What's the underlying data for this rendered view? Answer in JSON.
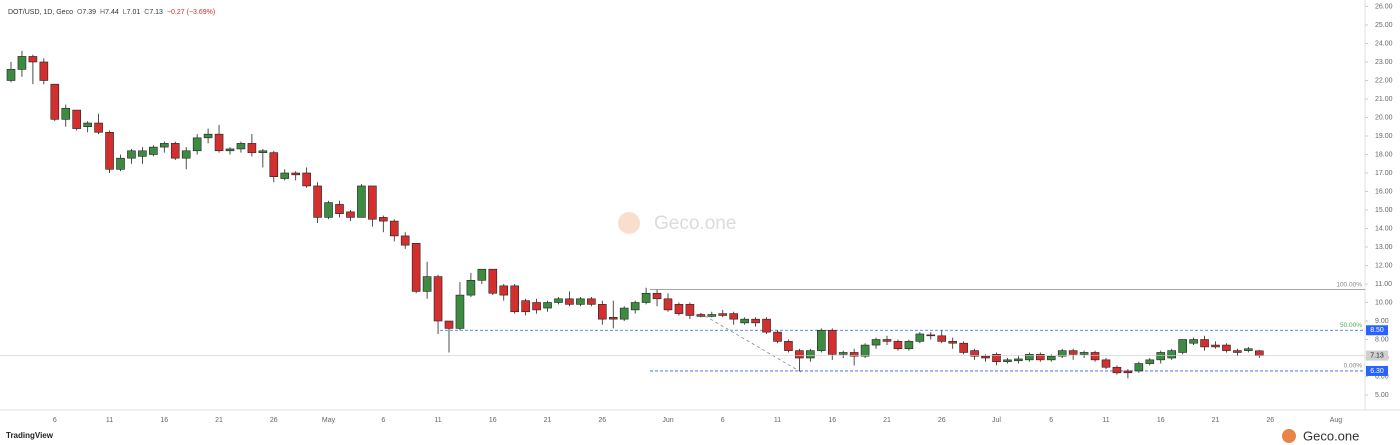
{
  "header": {
    "symbol": "DOT/USD, 1D, Geco",
    "o": "O",
    "h": "H",
    "l": "L",
    "c": "C",
    "change": "−0.27 (−3.69%)"
  },
  "branding": {
    "watermark": "Geco.one",
    "platform": "TradingView",
    "logo": "Geco.one"
  },
  "chart_data": {
    "type": "candlestick",
    "categories": [
      null,
      null,
      null,
      null,
      "6",
      null,
      null,
      null,
      null,
      "11",
      null,
      null,
      null,
      null,
      "16",
      null,
      null,
      null,
      null,
      "21",
      null,
      null,
      null,
      null,
      "26",
      null,
      null,
      null,
      null,
      "May",
      null,
      null,
      null,
      null,
      "6",
      null,
      null,
      null,
      null,
      "11",
      null,
      null,
      null,
      null,
      "16",
      null,
      null,
      null,
      null,
      "21",
      null,
      null,
      null,
      null,
      "26",
      null,
      null,
      null,
      null,
      null,
      "Jun",
      null,
      null,
      null,
      null,
      "6",
      null,
      null,
      null,
      null,
      "11",
      null,
      null,
      null,
      null,
      "16",
      null,
      null,
      null,
      null,
      "21",
      null,
      null,
      null,
      null,
      "26",
      null,
      null,
      null,
      null,
      "Jul",
      null,
      null,
      null,
      null,
      "6",
      null,
      null,
      null,
      null,
      "11",
      null,
      null,
      null,
      null,
      "16",
      null,
      null,
      null,
      null,
      "21",
      null,
      null,
      null,
      null,
      "26",
      null,
      null,
      null,
      null,
      null,
      "Aug"
    ],
    "open": [
      22.0,
      22.6,
      23.3,
      23.0,
      21.8,
      19.9,
      20.4,
      19.5,
      19.7,
      19.2,
      17.2,
      17.8,
      17.9,
      18.0,
      18.4,
      18.6,
      17.8,
      18.2,
      18.9,
      19.1,
      18.2,
      18.3,
      18.6,
      18.1,
      18.1,
      16.7,
      17.0,
      17.0,
      16.3,
      14.6,
      15.3,
      14.9,
      14.6,
      16.3,
      14.6,
      14.4,
      13.6,
      13.2,
      10.6,
      11.4,
      9.0,
      8.6,
      10.4,
      11.2,
      11.8,
      10.9,
      10.9,
      10.1,
      10.0,
      9.7,
      10.0,
      10.2,
      9.9,
      10.2,
      9.9,
      9.2,
      9.1,
      9.6,
      10.0,
      10.5,
      10.2,
      9.9,
      9.9,
      9.35,
      9.25,
      9.4,
      9.4,
      8.9,
      9.1,
      9.1,
      8.4,
      7.9,
      7.4,
      7.0,
      7.4,
      8.5,
      7.2,
      7.3,
      7.1,
      7.7,
      8.0,
      7.9,
      7.5,
      7.9,
      8.25,
      8.2,
      7.9,
      7.8,
      7.4,
      7.1,
      7.2,
      6.8,
      6.85,
      6.9,
      7.2,
      6.9,
      7.1,
      7.4,
      7.2,
      7.3,
      6.9,
      6.5,
      6.3,
      6.3,
      6.7,
      6.9,
      7.0,
      7.3,
      7.8,
      8.0,
      7.7,
      7.7,
      7.4,
      7.4,
      7.39,
      null,
      null,
      null,
      null,
      null,
      null,
      null
    ],
    "high": [
      23.0,
      23.6,
      23.4,
      23.2,
      21.8,
      20.7,
      20.4,
      19.8,
      20.2,
      19.3,
      18.0,
      18.3,
      18.4,
      18.5,
      18.7,
      18.7,
      18.4,
      19.1,
      19.4,
      19.6,
      18.4,
      18.7,
      19.1,
      18.3,
      18.2,
      17.2,
      17.1,
      17.3,
      16.5,
      15.5,
      15.5,
      15.0,
      16.4,
      16.3,
      14.7,
      14.5,
      13.8,
      13.2,
      12.2,
      11.5,
      9.0,
      11.1,
      11.6,
      11.8,
      11.8,
      11.0,
      11.0,
      10.2,
      10.2,
      10.1,
      10.3,
      10.6,
      10.3,
      10.3,
      10.1,
      10.1,
      9.8,
      10.1,
      10.8,
      10.7,
      10.5,
      10.0,
      10.0,
      9.4,
      9.5,
      9.6,
      9.5,
      9.2,
      9.2,
      9.2,
      8.5,
      8.0,
      7.5,
      7.5,
      8.6,
      8.6,
      7.4,
      7.5,
      7.8,
      8.1,
      8.2,
      8.0,
      8.0,
      8.4,
      8.4,
      8.5,
      8.1,
      7.9,
      7.5,
      7.2,
      7.3,
      7.0,
      7.1,
      7.3,
      7.3,
      7.2,
      7.5,
      7.5,
      7.4,
      7.4,
      7.0,
      6.6,
      6.4,
      6.8,
      7.0,
      7.4,
      7.5,
      8.0,
      8.1,
      8.2,
      7.9,
      7.8,
      7.5,
      7.6,
      7.44,
      null,
      null,
      null,
      null,
      null,
      null,
      null
    ],
    "low": [
      21.9,
      22.2,
      21.8,
      21.8,
      19.8,
      19.5,
      19.3,
      19.2,
      19.1,
      17.0,
      17.1,
      17.5,
      17.5,
      17.9,
      18.1,
      17.7,
      17.2,
      18.0,
      18.6,
      18.1,
      18.0,
      18.1,
      17.9,
      17.3,
      16.5,
      16.6,
      16.6,
      16.2,
      14.3,
      14.5,
      14.6,
      14.4,
      14.6,
      14.1,
      13.8,
      13.3,
      12.9,
      10.5,
      10.2,
      8.3,
      7.3,
      8.5,
      10.3,
      11.0,
      10.4,
      10.1,
      9.4,
      9.3,
      9.4,
      9.5,
      9.9,
      9.8,
      9.8,
      9.8,
      8.8,
      8.6,
      9.0,
      9.4,
      9.9,
      9.8,
      9.5,
      9.3,
      9.1,
      9.2,
      9.2,
      9.2,
      8.8,
      8.8,
      8.7,
      8.3,
      7.8,
      7.3,
      6.3,
      6.8,
      7.3,
      6.9,
      7.0,
      6.6,
      7.0,
      7.5,
      7.7,
      7.4,
      7.4,
      7.8,
      8.0,
      7.8,
      7.5,
      7.2,
      6.9,
      6.8,
      6.6,
      6.7,
      6.7,
      6.8,
      6.8,
      6.8,
      7.0,
      6.9,
      7.0,
      6.8,
      6.4,
      6.1,
      5.9,
      6.2,
      6.6,
      6.7,
      6.9,
      7.2,
      7.7,
      7.4,
      7.5,
      7.3,
      7.1,
      7.3,
      7.01,
      null,
      null,
      null,
      null,
      null,
      null,
      null
    ],
    "close": [
      22.6,
      23.3,
      23.0,
      22.0,
      19.9,
      20.5,
      19.4,
      19.7,
      19.2,
      17.2,
      17.8,
      18.2,
      18.2,
      18.4,
      18.6,
      17.8,
      18.2,
      18.9,
      19.1,
      18.2,
      18.3,
      18.6,
      18.1,
      18.2,
      16.8,
      17.0,
      16.9,
      16.3,
      14.6,
      15.4,
      14.8,
      14.6,
      16.3,
      14.5,
      14.4,
      13.6,
      13.1,
      10.6,
      11.4,
      9.0,
      8.6,
      10.4,
      11.2,
      11.8,
      10.5,
      10.4,
      9.5,
      9.5,
      9.6,
      10.0,
      10.2,
      9.9,
      10.2,
      9.9,
      9.1,
      9.1,
      9.7,
      10.0,
      10.5,
      10.2,
      9.6,
      9.4,
      9.3,
      9.25,
      9.35,
      9.3,
      9.1,
      9.1,
      8.9,
      8.4,
      7.9,
      7.4,
      7.0,
      7.4,
      8.5,
      7.2,
      7.3,
      7.1,
      7.7,
      8.0,
      7.9,
      7.5,
      7.9,
      8.3,
      8.2,
      7.9,
      7.8,
      7.3,
      7.1,
      7.0,
      6.8,
      6.9,
      6.95,
      7.2,
      6.9,
      7.1,
      7.4,
      7.2,
      7.3,
      6.9,
      6.5,
      6.2,
      6.2,
      6.7,
      6.9,
      7.3,
      7.4,
      8.0,
      8.0,
      7.6,
      7.6,
      7.4,
      7.3,
      7.5,
      7.13,
      null,
      null,
      null,
      null,
      null,
      null,
      null
    ],
    "up_color": "#3d8b40",
    "down_color": "#d32f2f",
    "ylim": [
      4.19,
      26.35
    ],
    "yticks": [
      {
        "value": 5,
        "label": "5.00"
      },
      {
        "value": 6,
        "label": "6.00"
      },
      {
        "value": 7,
        "label": "7.00"
      },
      {
        "value": 8,
        "label": "8.00"
      },
      {
        "value": 9,
        "label": "9.00"
      },
      {
        "value": 10,
        "label": "10.00"
      },
      {
        "value": 11,
        "label": "11.00"
      },
      {
        "value": 12,
        "label": "12.00"
      },
      {
        "value": 13,
        "label": "13.00"
      },
      {
        "value": 14,
        "label": "14.00"
      },
      {
        "value": 15,
        "label": "15.00"
      },
      {
        "value": 16,
        "label": "16.00"
      },
      {
        "value": 17,
        "label": "17.00"
      },
      {
        "value": 18,
        "label": "18.00"
      },
      {
        "value": 19,
        "label": "19.00"
      },
      {
        "value": 20,
        "label": "20.00"
      },
      {
        "value": 21,
        "label": "21.00"
      },
      {
        "value": 22,
        "label": "22.00"
      },
      {
        "value": 23,
        "label": "23.00"
      },
      {
        "value": 24,
        "label": "24.00"
      },
      {
        "value": 25,
        "label": "25.00"
      },
      {
        "value": 26,
        "label": "26.00"
      }
    ],
    "fib_levels": [
      {
        "label": "100.00%",
        "value": 10.7,
        "color": "#888888"
      },
      {
        "label": "50.00%",
        "value": 8.5,
        "price_label": "8.50",
        "color": "#4caf50"
      },
      {
        "label": "0.00%",
        "value": 6.3,
        "price_label": "6.30",
        "color": "#888888"
      }
    ]
  }
}
